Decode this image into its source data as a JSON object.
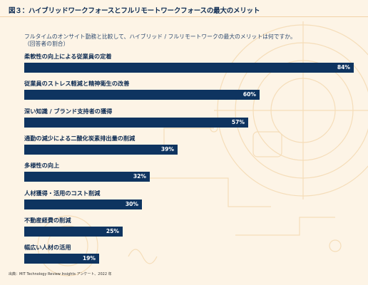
{
  "figure": {
    "title": "図３：ハイブリッドワークフォースとフルリモートワークフォースの最大のメリット",
    "question_line1": "フルタイムのオンサイト勤務と比較して、ハイブリッド / フルリモートワークの最大のメリットは何ですか。",
    "question_line2": "（回答者の割合）",
    "source": "出典：MIT Technology Review Insights アンケート、2022 年"
  },
  "chart_data": {
    "type": "bar",
    "orientation": "horizontal",
    "categories": [
      "柔軟性の向上による従業員の定着",
      "従業員のストレス軽減と精神衛生の改善",
      "深い知識 / ブランド支持者の獲得",
      "通勤の減少による二酸化炭素排出量の削減",
      "多様性の向上",
      "人材獲得・活用のコスト削減",
      "不動産経費の削減",
      "幅広い人材の活用"
    ],
    "values": [
      84,
      60,
      57,
      39,
      32,
      30,
      25,
      19
    ],
    "value_labels": [
      "84%",
      "60%",
      "57%",
      "39%",
      "32%",
      "30%",
      "25%",
      "19%"
    ],
    "unit": "%",
    "xlim": [
      0,
      84
    ],
    "bar_color": "#0e3460",
    "value_label_color": "#ffffff",
    "grid": false,
    "legend": "none"
  },
  "colors": {
    "background": "#fdf4e6",
    "bar": "#0e3460",
    "decoration": "#f3d7ae"
  }
}
